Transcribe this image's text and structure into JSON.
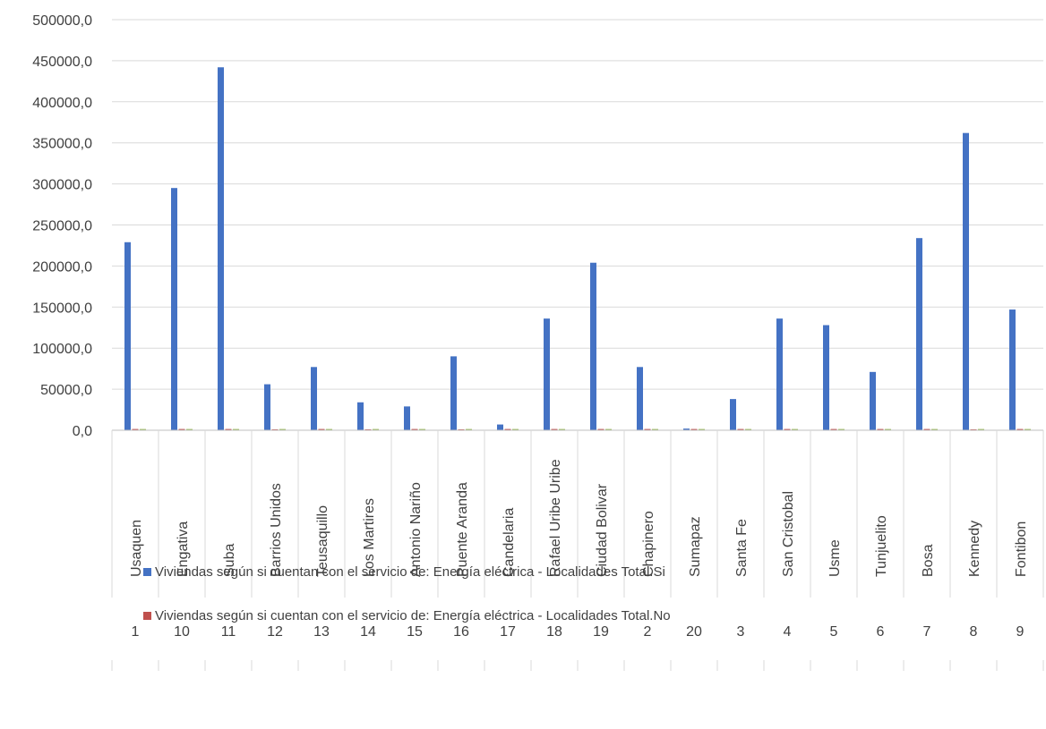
{
  "chart_data": {
    "type": "bar",
    "title": "",
    "xlabel": "",
    "ylabel": "",
    "ylim": [
      0,
      500000
    ],
    "yticks": [
      "0,0",
      "50000,0",
      "100000,0",
      "150000,0",
      "200000,0",
      "250000,0",
      "300000,0",
      "350000,0",
      "400000,0",
      "450000,0",
      "500000,0"
    ],
    "grid": true,
    "legend_position": "bottom",
    "codes": [
      "1",
      "10",
      "11",
      "12",
      "13",
      "14",
      "15",
      "16",
      "17",
      "18",
      "19",
      "2",
      "20",
      "3",
      "4",
      "5",
      "6",
      "7",
      "8",
      "9"
    ],
    "categories": [
      "Usaquen",
      "Engativa",
      "Suba",
      "Barrios Unidos",
      "Teusaquillo",
      "Los Martires",
      "Antonio Nariño",
      "Puente Aranda",
      "Candelaria",
      "Rafael Uribe Uribe",
      "Ciudad Bolivar",
      "Chapinero",
      "Sumapaz",
      "Santa Fe",
      "San Cristobal",
      "Usme",
      "Tunjuelito",
      "Bosa",
      "Kennedy",
      "Fontibon"
    ],
    "series": [
      {
        "name": "Viviendas según si cuentan con el servicio de: Energía eléctrica - Localidades Total.Si",
        "color": "#4472C4",
        "values": [
          229000,
          295000,
          442000,
          56000,
          77000,
          34000,
          29000,
          90000,
          7000,
          136000,
          204000,
          77000,
          2000,
          38000,
          136000,
          128000,
          71000,
          234000,
          362000,
          147000
        ]
      },
      {
        "name": "Viviendas según si cuentan con el servicio de: Energía eléctrica - Localidades Total.No",
        "color": "#C0504D",
        "values": [
          1500,
          1500,
          1500,
          300,
          1500,
          300,
          1500,
          300,
          1500,
          1500,
          1500,
          1500,
          1500,
          1500,
          1500,
          1500,
          1500,
          1500,
          300,
          1500
        ]
      },
      {
        "name": "",
        "color": "#9BBB59",
        "values": [
          1500,
          1500,
          1500,
          1500,
          1500,
          1500,
          1500,
          1500,
          1500,
          1500,
          1500,
          1500,
          1500,
          1500,
          1500,
          1500,
          1500,
          1500,
          1500,
          1500
        ]
      }
    ]
  }
}
